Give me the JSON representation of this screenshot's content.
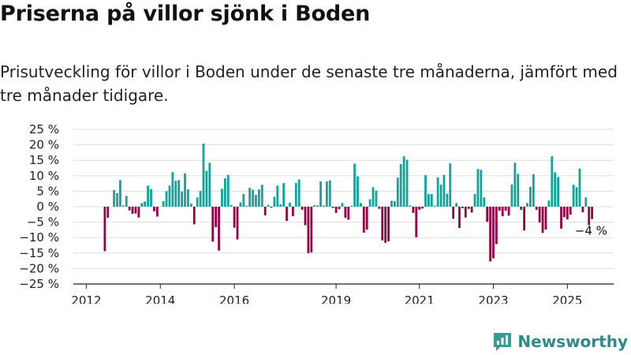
{
  "header": {
    "title": "Priserna på villor sjönk i Boden",
    "subtitle": "Prisutveckling för villor i Boden under de senaste tre månaderna, jämfört med tre månader tidigare."
  },
  "brand": {
    "name": "Newsworthy",
    "icon": "newsworthy-logo-icon",
    "color": "#3a9c95"
  },
  "chart_data": {
    "type": "bar",
    "title": "",
    "xlabel": "",
    "ylabel": "",
    "ylim": [
      -25,
      25
    ],
    "y_ticks": [
      25,
      20,
      15,
      10,
      5,
      0,
      -5,
      -10,
      -15,
      -20,
      -25
    ],
    "y_tick_suffix": " %",
    "x_tick_labels": [
      "2012",
      "2014",
      "2016",
      "2019",
      "2021",
      "2023",
      "2025"
    ],
    "x_tick_positions": [
      2012.0,
      2014.0,
      2016.0,
      2018.75,
      2021.0,
      2023.0,
      2025.0
    ],
    "xlim": [
      2011.65,
      2026.25
    ],
    "grid": true,
    "colors": {
      "positive": "#13a39a",
      "negative": "#940545",
      "grid": "#dddddd",
      "axis": "#222222"
    },
    "annotation": {
      "text": "−4 %",
      "x": 2025.5,
      "y": -4
    },
    "series": [
      {
        "start": 2012.5,
        "step": 0.08333,
        "values": [
          -14.4,
          -3.6,
          0.0,
          5.4,
          4.4,
          8.6,
          0.4,
          3.5,
          -1.2,
          -2.3,
          -2.2,
          -3.5,
          1.2,
          1.7,
          6.8,
          5.7,
          -1.5,
          -3.2,
          0.0,
          1.8,
          5.0,
          6.8,
          11.2,
          8.4,
          8.6,
          4.9,
          10.8,
          5.6,
          1.0,
          -5.7,
          3.0,
          5.1,
          20.4,
          11.6,
          14.2,
          -11.3,
          -6.6,
          -14.2,
          5.8,
          9.2,
          10.3,
          0.5,
          -6.8,
          -10.6,
          1.4,
          4.1,
          0.3,
          6.1,
          5.5,
          3.8,
          5.6,
          7.1,
          -2.8,
          0.6,
          -0.3,
          3.2,
          6.8,
          0.8,
          7.6,
          -4.6,
          1.3,
          -3.1,
          7.7,
          8.8,
          -1.0,
          -6.0,
          -15.0,
          -14.8,
          0.5,
          0.4,
          8.2,
          0.4,
          8.2,
          8.5,
          -0.4,
          -2.0,
          -0.8,
          1.2,
          -3.6,
          -4.2,
          0.3,
          13.9,
          9.8,
          1.2,
          -8.4,
          -7.4,
          2.4,
          6.3,
          5.2,
          -0.7,
          -10.9,
          -11.7,
          -11.2,
          1.9,
          1.8,
          9.4,
          13.8,
          16.3,
          15.2,
          0.4,
          -2.0,
          -9.9,
          -1.0,
          -0.6,
          10.2,
          4.1,
          4.1,
          0.3,
          9.5,
          7.1,
          10.3,
          4.2,
          14.0,
          -3.9,
          1.2,
          -6.9,
          -0.5,
          -3.5,
          -0.7,
          -1.9,
          4.1,
          12.2,
          11.9,
          3.0,
          -4.9,
          -17.7,
          -16.7,
          -12.1,
          -1.3,
          -3.1,
          -1.3,
          -2.9,
          7.2,
          14.2,
          10.6,
          -1.0,
          -7.7,
          1.2,
          6.4,
          10.5,
          -1.0,
          -5.1,
          -8.5,
          -7.4,
          2.0,
          16.3,
          11.1,
          9.6,
          -7.1,
          -3.4,
          -4.1,
          -2.6,
          7.1,
          6.3,
          12.3,
          -1.8,
          3.0,
          -6.0,
          -4.0
        ]
      }
    ]
  }
}
